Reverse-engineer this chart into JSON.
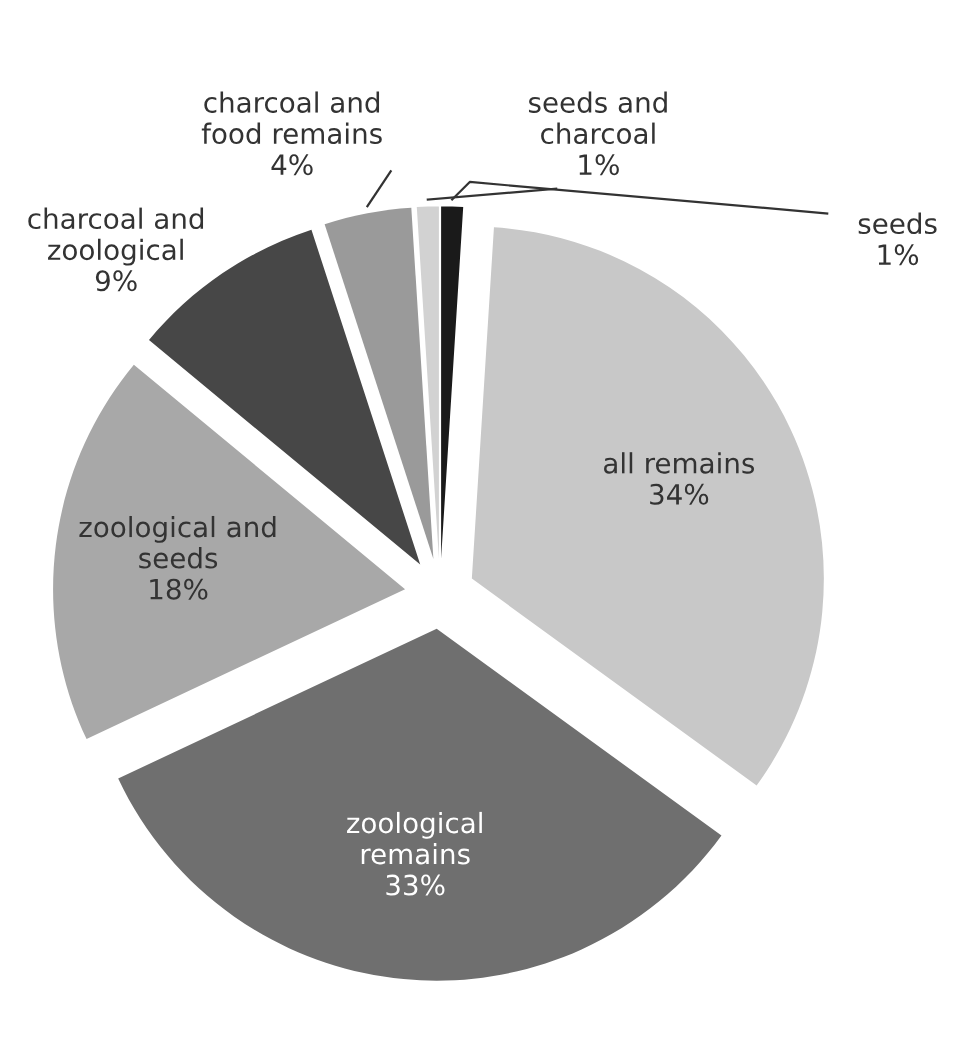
{
  "chart_data": {
    "type": "pie",
    "categories": [
      "seeds",
      "all remains",
      "zoological\nremains",
      "zoological and\nseeds",
      "charcoal and\nzoological",
      "charcoal and\nfood remains",
      "seeds and\ncharcoal"
    ],
    "values": [
      1,
      34,
      33,
      18,
      9,
      4,
      1
    ],
    "value_labels": [
      "1%",
      "34%",
      "33%",
      "18%",
      "9%",
      "4%",
      "1%"
    ],
    "colors": [
      "#1a1a1a",
      "#c8c8c8",
      "#6f6f6f",
      "#a8a8a8",
      "#474747",
      "#9a9a9a",
      "#d2d2d2"
    ]
  }
}
